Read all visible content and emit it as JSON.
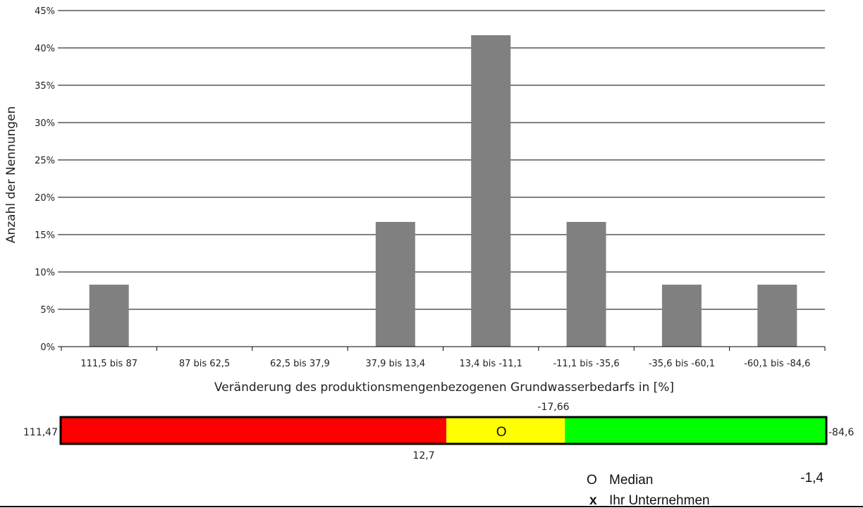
{
  "chart_data": {
    "type": "bar",
    "categories": [
      "111,5 bis 87",
      "87 bis 62,5",
      "62,5 bis 37,9",
      "37,9 bis 13,4",
      "13,4 bis -11,1",
      "-11,1 bis -35,6",
      "-35,6 bis -60,1",
      "-60,1 bis -84,6"
    ],
    "values": [
      8.3,
      0,
      0,
      16.7,
      41.7,
      16.7,
      8.3,
      8.3
    ],
    "ylabel": "Anzahl der Nennungen",
    "xlabel": "Veränderung des produktionsmengenbezogenen Grundwasserbedarfs in [%]",
    "ylim": [
      0,
      45
    ],
    "yticks": [
      0,
      5,
      10,
      15,
      20,
      25,
      30,
      35,
      40,
      45
    ],
    "ytick_labels": [
      "0%",
      "5%",
      "10%",
      "15%",
      "20%",
      "25%",
      "30%",
      "35%",
      "40%",
      "45%"
    ],
    "bar_color": "#808080",
    "grid": true
  },
  "range_bar": {
    "min_label": "111,47",
    "max_label": "-84,6",
    "min_value": 111.47,
    "max_value": -84.6,
    "segments": [
      {
        "name": "red",
        "from": 111.47,
        "to": 12.7,
        "color": "#ff0000"
      },
      {
        "name": "yellow",
        "from": 12.7,
        "to": -17.66,
        "color": "#ffff00"
      },
      {
        "name": "green",
        "from": -17.66,
        "to": -84.6,
        "color": "#00ff00"
      }
    ],
    "boundary_low_label": "12,7",
    "boundary_high_label": "-17,66",
    "median_marker": "O",
    "median_value": -1.4
  },
  "legend": {
    "median_symbol": "O",
    "median_label": "Median",
    "median_value": "-1,4",
    "company_symbol": "x",
    "company_label": "Ihr Unternehmen"
  }
}
